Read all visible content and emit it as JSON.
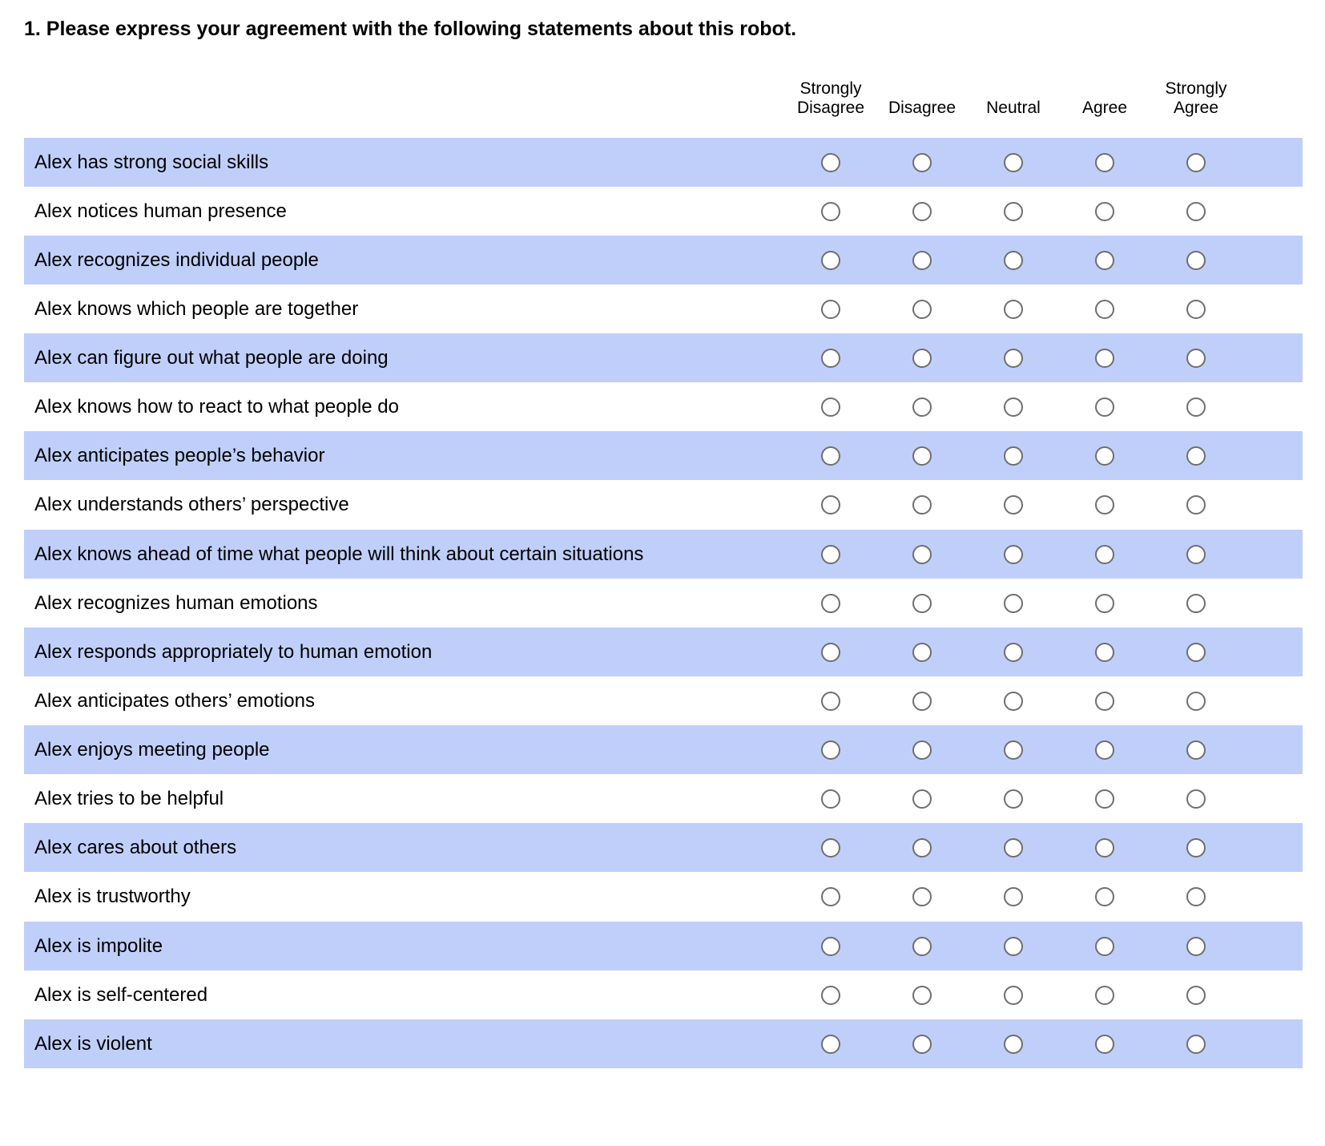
{
  "question": {
    "title": "1. Please express your agreement with the following statements about this robot."
  },
  "colors": {
    "row_shade": "#c0cffa",
    "radio_border": "#6e6e6e"
  },
  "scale": [
    "Strongly\nDisagree",
    "Disagree",
    "Neutral",
    "Agree",
    "Strongly\nAgree"
  ],
  "statements": [
    "Alex has strong social skills",
    "Alex notices human presence",
    "Alex recognizes individual people",
    "Alex knows which people are together",
    "Alex can figure out what people are doing",
    "Alex knows how to react to what people do",
    "Alex anticipates people’s behavior",
    "Alex understands others’ perspective",
    "Alex knows ahead of time what people will think about certain situations",
    "Alex recognizes human emotions",
    "Alex responds appropriately to human emotion",
    "Alex anticipates others’ emotions",
    "Alex enjoys meeting people",
    "Alex tries to be helpful",
    "Alex cares about others",
    "Alex is trustworthy",
    "Alex is impolite",
    "Alex is self-centered",
    "Alex is violent"
  ]
}
